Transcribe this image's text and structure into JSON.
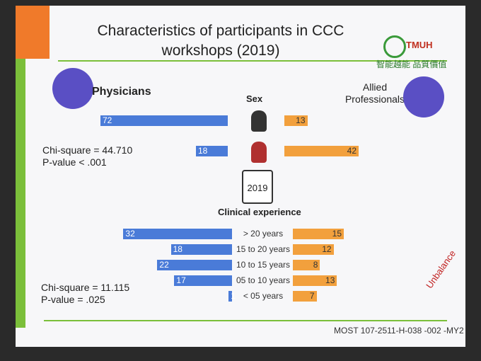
{
  "header": {
    "title": "Characteristics of participants in CCC workshops (2019)",
    "logo": "TMUH",
    "motto": "智能越能 品質價值"
  },
  "groups": {
    "left": "Physicians",
    "right": "Allied Professionals"
  },
  "sex": {
    "heading": "Sex",
    "left": [
      72,
      18
    ],
    "right": [
      13,
      42
    ],
    "stats": [
      "Chi-square = 44.710",
      "P-value < .001"
    ]
  },
  "calendar": "2019",
  "clinical": {
    "heading": "Clinical experience",
    "categories": [
      "> 20 years",
      "15 to 20 years",
      "10 to 15 years",
      "05 to 10 years",
      "< 05 years"
    ],
    "left": [
      32,
      18,
      22,
      17,
      1
    ],
    "right": [
      15,
      12,
      8,
      13,
      7
    ],
    "stats": [
      "Chi-square = 11.115",
      "P-value = .025"
    ]
  },
  "note": "Unbalance",
  "footer": "MOST 107-2511-H-038 -002 -MY2"
}
